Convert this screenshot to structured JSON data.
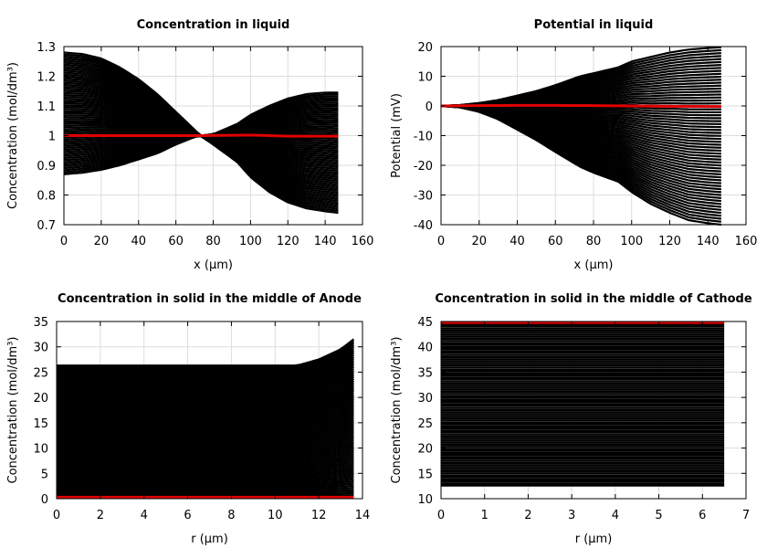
{
  "chart_data": [
    {
      "id": "liq-conc",
      "type": "line",
      "title": "Concentration in liquid",
      "xlabel": "x (µm)",
      "ylabel": "Concentration (mol/dm³)",
      "xlim": [
        0,
        160
      ],
      "ylim": [
        0.7,
        1.3
      ],
      "xticks": [
        0,
        20,
        40,
        60,
        80,
        100,
        120,
        140,
        160
      ],
      "yticks": [
        0.7,
        0.8,
        0.9,
        1,
        1.1,
        1.2,
        1.3
      ],
      "grid": true,
      "x": [
        0,
        10,
        20,
        30,
        40,
        50,
        60,
        70,
        73,
        80,
        93,
        100,
        110,
        120,
        130,
        140,
        147
      ],
      "envelope_upper": [
        1.28,
        1.275,
        1.26,
        1.23,
        1.19,
        1.14,
        1.08,
        1.02,
        1.0,
        1.005,
        1.04,
        1.07,
        1.1,
        1.125,
        1.14,
        1.145,
        1.145
      ],
      "envelope_lower": [
        0.87,
        0.875,
        0.885,
        0.9,
        0.92,
        0.94,
        0.97,
        0.995,
        1.0,
        0.97,
        0.91,
        0.86,
        0.81,
        0.775,
        0.755,
        0.745,
        0.74
      ],
      "series_family_count": 60,
      "series_color": "#000000",
      "highlight": {
        "x": [
          0,
          40,
          73,
          100,
          110,
          120,
          147
        ],
        "y": [
          1.0,
          1.0,
          1.0,
          1.002,
          1.0,
          0.998,
          0.998
        ],
        "color": "#e00000"
      }
    },
    {
      "id": "liq-pot",
      "type": "line",
      "title": "Potential in liquid",
      "xlabel": "x (µm)",
      "ylabel": "Potential (mV)",
      "xlim": [
        0,
        160
      ],
      "ylim": [
        -40,
        20
      ],
      "xticks": [
        0,
        20,
        40,
        60,
        80,
        100,
        120,
        140,
        160
      ],
      "yticks": [
        -40,
        -30,
        -20,
        -10,
        0,
        10,
        20
      ],
      "grid": true,
      "x": [
        0,
        10,
        20,
        30,
        40,
        50,
        60,
        73,
        80,
        93,
        100,
        110,
        120,
        130,
        140,
        147
      ],
      "envelope_upper": [
        0,
        0.3,
        1.0,
        2.0,
        3.5,
        5.0,
        7.0,
        10.0,
        11.0,
        13.0,
        15.0,
        16.5,
        18.0,
        19.0,
        19.5,
        19.8
      ],
      "envelope_lower": [
        0,
        -0.5,
        -2,
        -4.5,
        -8,
        -11.5,
        -15.5,
        -20.5,
        -22.5,
        -25.5,
        -29,
        -33,
        -36,
        -38.5,
        -39.5,
        -40
      ],
      "series_family_count": 60,
      "series_color": "#000000",
      "highlight": {
        "x": [
          0,
          20,
          40,
          60,
          80,
          100,
          120,
          147
        ],
        "y": [
          0,
          0.1,
          0.2,
          0.2,
          0.1,
          0,
          -0.1,
          -0.2
        ],
        "color": "#e00000"
      }
    },
    {
      "id": "sol-anode",
      "type": "line",
      "title": "Concentration in solid in the middle of Anode",
      "xlabel": "r (µm)",
      "ylabel": "Concentration (mol/dm³)",
      "xlim": [
        0,
        14
      ],
      "ylim": [
        0,
        35
      ],
      "xticks": [
        0,
        2,
        4,
        6,
        8,
        10,
        12,
        14
      ],
      "yticks": [
        0,
        5,
        10,
        15,
        20,
        25,
        30,
        35
      ],
      "grid": true,
      "x": [
        0,
        2,
        4,
        6,
        8,
        10,
        11,
        12,
        13,
        13.6
      ],
      "envelope_upper": [
        26.3,
        26.3,
        26.3,
        26.3,
        26.3,
        26.3,
        26.3,
        27.5,
        29.5,
        31.5
      ],
      "envelope_lower": [
        0.2,
        0.2,
        0.2,
        0.2,
        0.2,
        0.2,
        0.2,
        0.2,
        0.2,
        0.2
      ],
      "series_family_count": 80,
      "series_color": "#000000",
      "highlight": {
        "x": [
          0,
          13.6
        ],
        "y": [
          0.3,
          0.3
        ],
        "color": "#e00000"
      }
    },
    {
      "id": "sol-cathode",
      "type": "line",
      "title": "Concentration in solid in the middle of Cathode",
      "xlabel": "r (µm)",
      "ylabel": "Concentration (mol/dm³)",
      "xlim": [
        0,
        7
      ],
      "ylim": [
        10,
        45
      ],
      "xticks": [
        0,
        1,
        2,
        3,
        4,
        5,
        6,
        7
      ],
      "yticks": [
        10,
        15,
        20,
        25,
        30,
        35,
        40,
        45
      ],
      "grid": true,
      "x": [
        0,
        1,
        2,
        3,
        4,
        5,
        6,
        6.5
      ],
      "envelope_upper": [
        44.8,
        44.8,
        44.8,
        44.8,
        44.8,
        44.8,
        44.8,
        44.8
      ],
      "envelope_lower": [
        12.6,
        12.6,
        12.6,
        12.6,
        12.6,
        12.6,
        12.6,
        12.6
      ],
      "series_family_count": 80,
      "series_color": "#000000",
      "highlight": {
        "x": [
          0,
          6.5
        ],
        "y": [
          44.8,
          44.8
        ],
        "color": "#e00000"
      }
    }
  ]
}
